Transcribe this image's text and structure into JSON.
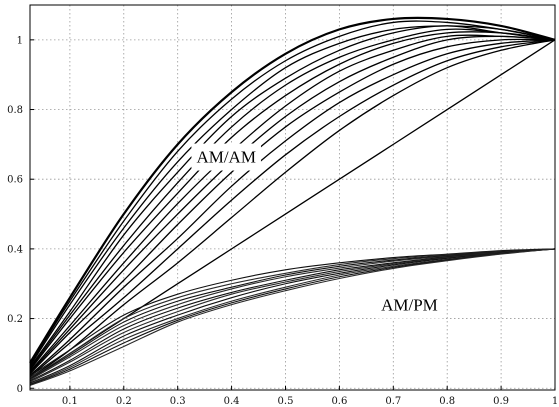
{
  "chart_data": {
    "type": "line",
    "title": "",
    "xlabel": "",
    "ylabel": "",
    "xlim": [
      0.026,
      1.0
    ],
    "ylim": [
      -0.005,
      1.1
    ],
    "grid": true,
    "xticks": [
      0.1,
      0.2,
      0.3,
      0.4,
      0.5,
      0.6,
      0.7,
      0.8,
      0.9,
      1
    ],
    "yticks": [
      0,
      0.2,
      0.4,
      0.6,
      0.8,
      1
    ],
    "annotations": [
      {
        "text": "AM/AM",
        "x": 0.39,
        "y": 0.665
      },
      {
        "text": "AM/PM",
        "x": 0.73,
        "y": 0.24
      }
    ],
    "groups": [
      {
        "name": "AM/AM",
        "x": [
          0.026,
          0.1,
          0.2,
          0.3,
          0.4,
          0.5,
          0.6,
          0.7,
          0.8,
          0.9,
          1.0
        ],
        "series": [
          {
            "values": [
              0.073,
              0.26,
              0.5,
              0.7,
              0.85,
              0.96,
              1.03,
              1.06,
              1.06,
              1.04,
              1.0
            ]
          },
          {
            "values": [
              0.068,
              0.25,
              0.48,
              0.68,
              0.83,
              0.94,
              1.01,
              1.05,
              1.05,
              1.03,
              1.0
            ]
          },
          {
            "values": [
              0.064,
              0.24,
              0.46,
              0.65,
              0.8,
              0.92,
              0.99,
              1.03,
              1.04,
              1.03,
              1.0
            ]
          },
          {
            "values": [
              0.06,
              0.22,
              0.44,
              0.62,
              0.78,
              0.89,
              0.97,
              1.02,
              1.04,
              1.02,
              1.0
            ]
          },
          {
            "values": [
              0.056,
              0.21,
              0.41,
              0.59,
              0.75,
              0.87,
              0.95,
              1.0,
              1.03,
              1.02,
              1.0
            ]
          },
          {
            "values": [
              0.052,
              0.2,
              0.39,
              0.56,
              0.72,
              0.84,
              0.93,
              0.99,
              1.02,
              1.02,
              1.0
            ]
          },
          {
            "values": [
              0.048,
              0.18,
              0.36,
              0.53,
              0.68,
              0.81,
              0.91,
              0.97,
              1.01,
              1.01,
              1.0
            ]
          },
          {
            "values": [
              0.045,
              0.17,
              0.34,
              0.5,
              0.65,
              0.78,
              0.88,
              0.95,
              1.0,
              1.01,
              1.0
            ]
          },
          {
            "values": [
              0.041,
              0.16,
              0.31,
              0.47,
              0.62,
              0.75,
              0.85,
              0.93,
              0.98,
              1.0,
              1.0
            ]
          },
          {
            "values": [
              0.037,
              0.14,
              0.29,
              0.43,
              0.58,
              0.71,
              0.82,
              0.9,
              0.96,
              0.99,
              1.0
            ]
          },
          {
            "values": [
              0.033,
              0.13,
              0.26,
              0.4,
              0.54,
              0.67,
              0.78,
              0.87,
              0.94,
              0.98,
              1.0
            ]
          },
          {
            "values": [
              0.03,
              0.11,
              0.24,
              0.36,
              0.49,
              0.62,
              0.74,
              0.84,
              0.92,
              0.97,
              1.0
            ]
          },
          {
            "values": [
              0.026,
              0.1,
              0.2,
              0.3,
              0.4,
              0.5,
              0.6,
              0.7,
              0.8,
              0.9,
              1.0
            ]
          }
        ]
      },
      {
        "name": "AM/PM",
        "x": [
          0.026,
          0.1,
          0.2,
          0.3,
          0.4,
          0.5,
          0.6,
          0.7,
          0.8,
          0.9,
          1.0
        ],
        "series": [
          {
            "values": [
              0.035,
              0.11,
              0.21,
              0.27,
              0.31,
              0.34,
              0.36,
              0.375,
              0.385,
              0.395,
              0.4
            ]
          },
          {
            "values": [
              0.03,
              0.1,
              0.2,
              0.26,
              0.3,
              0.33,
              0.355,
              0.372,
              0.383,
              0.393,
              0.4
            ]
          },
          {
            "values": [
              0.027,
              0.095,
              0.19,
              0.25,
              0.29,
              0.325,
              0.35,
              0.368,
              0.381,
              0.392,
              0.4
            ]
          },
          {
            "values": [
              0.024,
              0.09,
              0.18,
              0.24,
              0.285,
              0.32,
              0.345,
              0.365,
              0.379,
              0.391,
              0.4
            ]
          },
          {
            "values": [
              0.021,
              0.08,
              0.17,
              0.23,
              0.275,
              0.31,
              0.34,
              0.36,
              0.377,
              0.39,
              0.4
            ]
          },
          {
            "values": [
              0.018,
              0.075,
              0.16,
              0.22,
              0.27,
              0.305,
              0.335,
              0.357,
              0.375,
              0.389,
              0.4
            ]
          },
          {
            "values": [
              0.015,
              0.065,
              0.15,
              0.21,
              0.26,
              0.3,
              0.33,
              0.354,
              0.373,
              0.388,
              0.4
            ]
          },
          {
            "values": [
              0.012,
              0.06,
              0.14,
              0.2,
              0.25,
              0.29,
              0.325,
              0.35,
              0.37,
              0.387,
              0.4
            ]
          },
          {
            "values": [
              0.01,
              0.055,
              0.13,
              0.195,
              0.245,
              0.285,
              0.32,
              0.347,
              0.368,
              0.386,
              0.4
            ]
          },
          {
            "values": [
              0.008,
              0.05,
              0.12,
              0.19,
              0.24,
              0.28,
              0.315,
              0.344,
              0.366,
              0.385,
              0.4
            ]
          }
        ]
      }
    ]
  }
}
